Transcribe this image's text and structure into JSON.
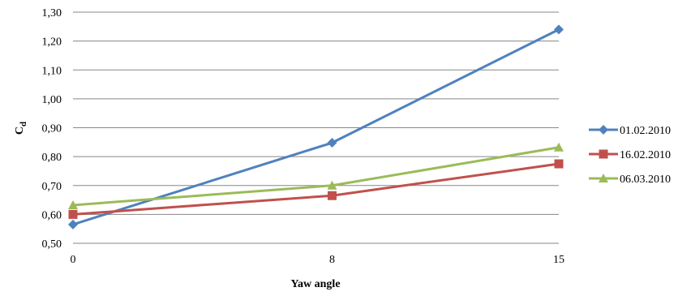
{
  "chart_data": {
    "type": "line",
    "x": [
      "0",
      "8",
      "15"
    ],
    "xlabel": "Yaw angle",
    "ylabel": "C",
    "ylabel_sub": "d",
    "ylim": [
      0.5,
      1.3
    ],
    "yticks": [
      "0,50",
      "0,60",
      "0,70",
      "0,80",
      "0,90",
      "1,00",
      "1,10",
      "1,20",
      "1,30"
    ],
    "grid": true,
    "legend_position": "right",
    "series": [
      {
        "name": "01.02.2010",
        "values": [
          0.565,
          0.848,
          1.24
        ],
        "color": "#4F81BD",
        "marker": "diamond"
      },
      {
        "name": "16.02.2010",
        "values": [
          0.6,
          0.665,
          0.775
        ],
        "color": "#C0504D",
        "marker": "square"
      },
      {
        "name": "06.03.2010",
        "values": [
          0.632,
          0.7,
          0.832
        ],
        "color": "#9BBB59",
        "marker": "triangle"
      }
    ]
  }
}
